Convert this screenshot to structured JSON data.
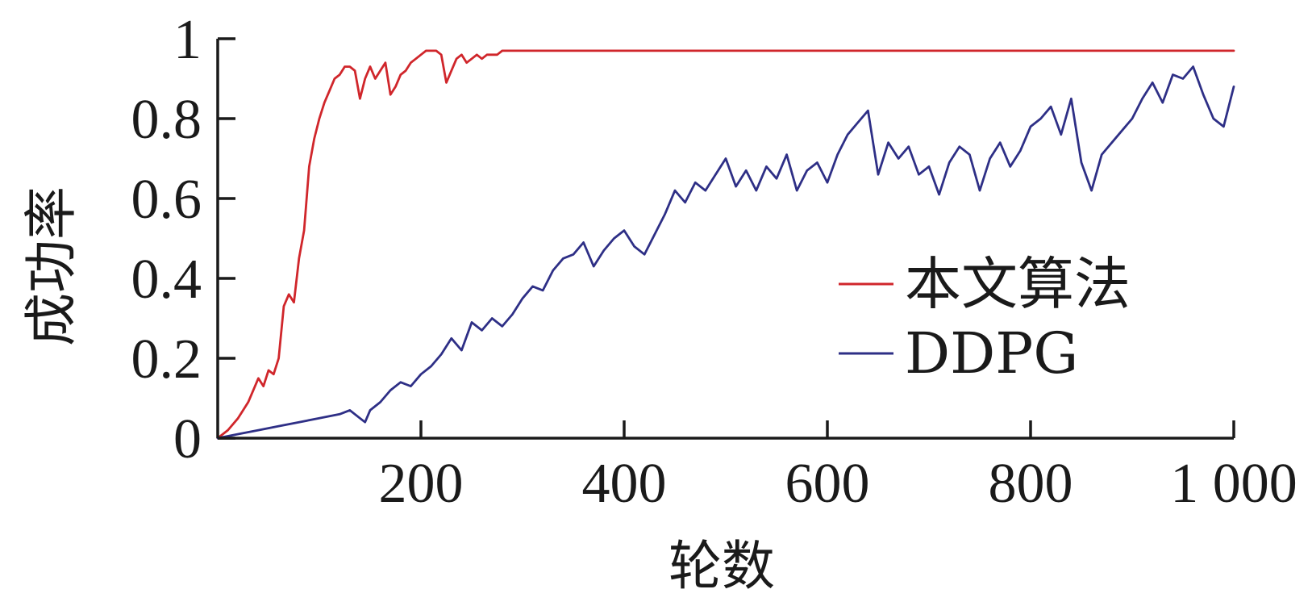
{
  "chart_data": {
    "type": "line",
    "title": "",
    "xlabel": "轮数",
    "ylabel": "成功率",
    "xlim": [
      0,
      1000
    ],
    "ylim": [
      0,
      1
    ],
    "grid": false,
    "legend_position": "center-right",
    "x_ticks": [
      {
        "value": 200,
        "label": "200"
      },
      {
        "value": 400,
        "label": "400"
      },
      {
        "value": 600,
        "label": "600"
      },
      {
        "value": 800,
        "label": "800"
      },
      {
        "value": 1000,
        "label": "1 000"
      }
    ],
    "y_ticks": [
      {
        "value": 0,
        "label": "0"
      },
      {
        "value": 0.2,
        "label": "0.2"
      },
      {
        "value": 0.4,
        "label": "0.4"
      },
      {
        "value": 0.6,
        "label": "0.6"
      },
      {
        "value": 0.8,
        "label": "0.8"
      },
      {
        "value": 1,
        "label": "1"
      }
    ],
    "series": [
      {
        "name": "本文算法",
        "color": "#d0262b",
        "x": [
          0,
          10,
          20,
          30,
          40,
          45,
          50,
          55,
          60,
          65,
          70,
          75,
          80,
          85,
          90,
          95,
          100,
          105,
          110,
          115,
          120,
          125,
          130,
          135,
          140,
          145,
          150,
          155,
          160,
          165,
          170,
          175,
          180,
          185,
          190,
          195,
          200,
          205,
          210,
          215,
          220,
          225,
          230,
          235,
          240,
          245,
          250,
          255,
          260,
          265,
          270,
          275,
          280,
          290,
          300,
          310,
          320,
          330,
          340,
          400,
          500,
          600,
          700,
          800,
          900,
          1000
        ],
        "y": [
          0,
          0.02,
          0.05,
          0.09,
          0.15,
          0.13,
          0.17,
          0.16,
          0.2,
          0.33,
          0.36,
          0.34,
          0.45,
          0.52,
          0.68,
          0.75,
          0.8,
          0.84,
          0.87,
          0.9,
          0.91,
          0.93,
          0.93,
          0.92,
          0.85,
          0.9,
          0.93,
          0.9,
          0.92,
          0.94,
          0.86,
          0.88,
          0.91,
          0.92,
          0.94,
          0.95,
          0.96,
          0.97,
          0.97,
          0.97,
          0.96,
          0.89,
          0.92,
          0.95,
          0.96,
          0.94,
          0.95,
          0.96,
          0.95,
          0.96,
          0.96,
          0.96,
          0.97,
          0.97,
          0.97,
          0.97,
          0.97,
          0.97,
          0.97,
          0.97,
          0.97,
          0.97,
          0.97,
          0.97,
          0.97,
          0.97
        ]
      },
      {
        "name": "DDPG",
        "color": "#2e2f86",
        "x": [
          0,
          20,
          40,
          60,
          80,
          100,
          120,
          130,
          140,
          145,
          150,
          160,
          170,
          180,
          190,
          200,
          210,
          220,
          230,
          240,
          250,
          260,
          270,
          280,
          290,
          300,
          310,
          320,
          330,
          340,
          350,
          360,
          370,
          380,
          390,
          400,
          410,
          420,
          430,
          440,
          450,
          460,
          470,
          480,
          490,
          500,
          510,
          520,
          530,
          540,
          550,
          560,
          570,
          580,
          590,
          600,
          610,
          620,
          630,
          640,
          650,
          660,
          670,
          680,
          690,
          700,
          710,
          720,
          730,
          740,
          750,
          760,
          770,
          780,
          790,
          800,
          810,
          820,
          830,
          840,
          850,
          860,
          870,
          880,
          890,
          900,
          910,
          920,
          930,
          940,
          950,
          960,
          970,
          980,
          990,
          1000
        ],
        "y": [
          0,
          0.01,
          0.02,
          0.03,
          0.04,
          0.05,
          0.06,
          0.07,
          0.05,
          0.04,
          0.07,
          0.09,
          0.12,
          0.14,
          0.13,
          0.16,
          0.18,
          0.21,
          0.25,
          0.22,
          0.29,
          0.27,
          0.3,
          0.28,
          0.31,
          0.35,
          0.38,
          0.37,
          0.42,
          0.45,
          0.46,
          0.49,
          0.43,
          0.47,
          0.5,
          0.52,
          0.48,
          0.46,
          0.51,
          0.56,
          0.62,
          0.59,
          0.64,
          0.62,
          0.66,
          0.7,
          0.63,
          0.67,
          0.62,
          0.68,
          0.65,
          0.71,
          0.62,
          0.67,
          0.69,
          0.64,
          0.71,
          0.76,
          0.79,
          0.82,
          0.66,
          0.74,
          0.7,
          0.73,
          0.66,
          0.68,
          0.61,
          0.69,
          0.73,
          0.71,
          0.62,
          0.7,
          0.74,
          0.68,
          0.72,
          0.78,
          0.8,
          0.83,
          0.76,
          0.85,
          0.69,
          0.62,
          0.71,
          0.74,
          0.77,
          0.8,
          0.85,
          0.89,
          0.84,
          0.91,
          0.9,
          0.93,
          0.86,
          0.8,
          0.78,
          0.88
        ]
      }
    ]
  }
}
